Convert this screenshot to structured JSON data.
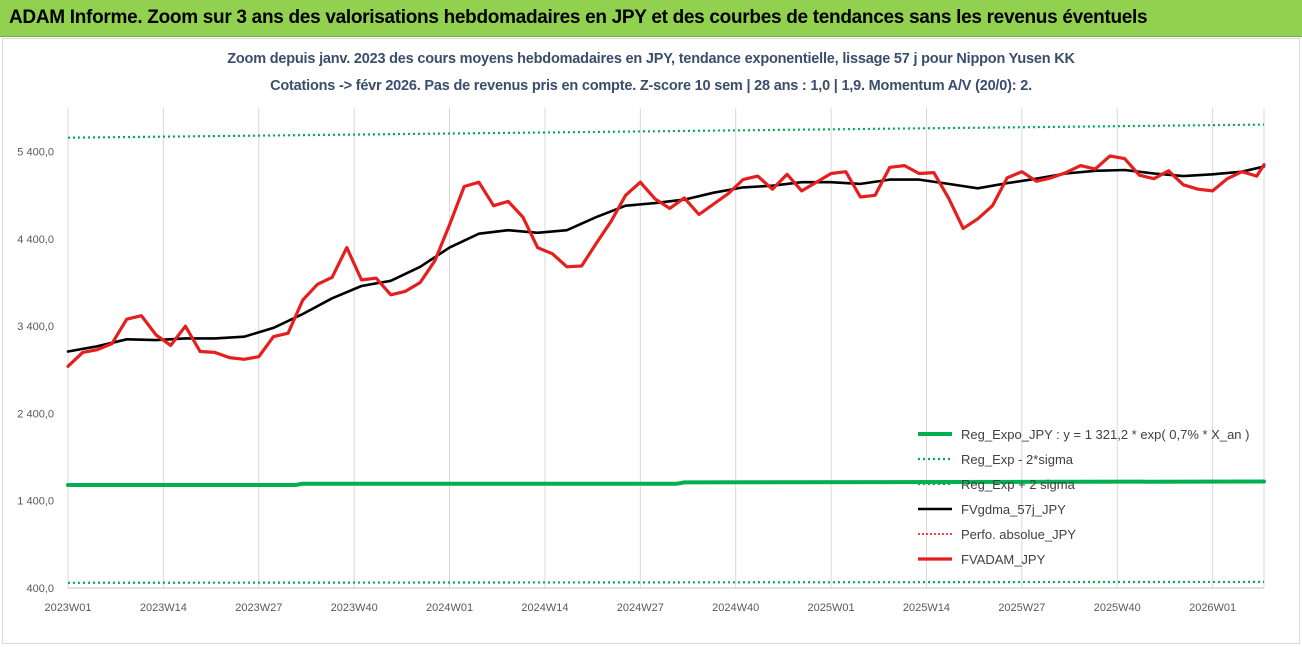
{
  "header": {
    "title": "ADAM Informe. Zoom sur 3 ans des valorisations hebdomadaires en JPY et des courbes de tendances sans les revenus éventuels"
  },
  "colors": {
    "title_bar": "#92d050",
    "reg_expo": "#00b050",
    "band": "#00b050",
    "fvgdma": "#000000",
    "perfo": "#ff0000",
    "fvadam": "#e61e1e",
    "grid": "#d9d9d9"
  },
  "chart_data": {
    "type": "line",
    "title": "Zoom depuis janv. 2023 des cours moyens hebdomadaires en JPY, tendance exponentielle, lissage 57 j pour Nippon Yusen KK",
    "subtitle": "Cotations -> févr 2026.  Pas de revenus pris en compte. Z-score 10 sem | 28 ans : 1,0 | 1,9. Momentum A/V (20/0): 2.",
    "xlabel": "",
    "ylabel": "",
    "ylim": [
      400,
      5900
    ],
    "yticks": [
      400,
      1400,
      2400,
      3400,
      4400,
      5400
    ],
    "ytick_labels": [
      "400,0",
      "1 400,0",
      "2 400,0",
      "3 400,0",
      "4 400,0",
      "5 400,0"
    ],
    "x_tick_labels": [
      "2023W01",
      "2023W14",
      "2023W27",
      "2023W40",
      "2024W01",
      "2024W14",
      "2024W27",
      "2024W40",
      "2025W01",
      "2025W14",
      "2025W27",
      "2025W40",
      "2026W01"
    ],
    "x_tick_positions": [
      0,
      13,
      26,
      39,
      52,
      65,
      78,
      91,
      104,
      117,
      130,
      143,
      156
    ],
    "x_range": [
      0,
      163
    ],
    "series": [
      {
        "name": "Reg_Expo_JPY : y = 1 321,2 * exp( 0,7% * X_an )",
        "style": "solid-thick",
        "x": [
          0,
          31,
          32,
          83,
          84,
          163
        ],
        "values": [
          1580,
          1580,
          1595,
          1595,
          1610,
          1620
        ]
      },
      {
        "name": "Reg_Exp - 2*sigma",
        "style": "dotted",
        "x": [
          0,
          163
        ],
        "values": [
          460,
          470
        ]
      },
      {
        "name": "Reg_Exp + 2 sigma",
        "style": "dotted",
        "x": [
          0,
          163
        ],
        "values": [
          5560,
          5710
        ]
      },
      {
        "name": "FVgdma_57j_JPY",
        "style": "solid",
        "x": [
          0,
          4,
          8,
          12,
          16,
          20,
          24,
          28,
          32,
          36,
          40,
          44,
          48,
          52,
          56,
          60,
          64,
          68,
          72,
          76,
          80,
          84,
          88,
          92,
          96,
          100,
          104,
          108,
          112,
          116,
          120,
          124,
          128,
          132,
          136,
          140,
          144,
          148,
          152,
          156,
          160,
          163
        ],
        "values": [
          3110,
          3170,
          3250,
          3240,
          3260,
          3260,
          3280,
          3380,
          3540,
          3720,
          3860,
          3920,
          4080,
          4300,
          4460,
          4500,
          4470,
          4500,
          4650,
          4780,
          4810,
          4850,
          4930,
          4990,
          5010,
          5050,
          5050,
          5030,
          5080,
          5080,
          5030,
          4980,
          5040,
          5090,
          5150,
          5180,
          5190,
          5150,
          5120,
          5140,
          5170,
          5230
        ]
      },
      {
        "name": "Perfo. absolue_JPY",
        "style": "dotted-red",
        "x": [],
        "values": []
      },
      {
        "name": "FVADAM_JPY",
        "style": "solid-thick",
        "x": [
          0,
          2,
          4,
          6,
          8,
          10,
          12,
          14,
          16,
          18,
          20,
          22,
          24,
          26,
          28,
          30,
          32,
          34,
          36,
          38,
          40,
          42,
          44,
          46,
          48,
          50,
          52,
          54,
          56,
          58,
          60,
          62,
          64,
          66,
          68,
          70,
          72,
          74,
          76,
          78,
          80,
          82,
          84,
          86,
          88,
          90,
          92,
          94,
          96,
          98,
          100,
          102,
          104,
          106,
          108,
          110,
          112,
          114,
          116,
          118,
          120,
          122,
          124,
          126,
          128,
          130,
          132,
          134,
          136,
          138,
          140,
          142,
          144,
          146,
          148,
          150,
          152,
          154,
          156,
          158,
          160,
          162,
          163
        ],
        "values": [
          2940,
          3100,
          3130,
          3200,
          3480,
          3520,
          3300,
          3180,
          3400,
          3110,
          3100,
          3040,
          3020,
          3050,
          3280,
          3320,
          3700,
          3880,
          3960,
          4300,
          3930,
          3950,
          3760,
          3800,
          3900,
          4150,
          4560,
          5000,
          5050,
          4780,
          4830,
          4650,
          4300,
          4230,
          4080,
          4090,
          4350,
          4600,
          4900,
          5050,
          4860,
          4750,
          4870,
          4680,
          4800,
          4920,
          5080,
          5120,
          4970,
          5140,
          4950,
          5050,
          5150,
          5170,
          4880,
          4900,
          5220,
          5240,
          5150,
          5160,
          4870,
          4520,
          4630,
          4780,
          5100,
          5170,
          5060,
          5100,
          5160,
          5240,
          5200,
          5350,
          5320,
          5130,
          5090,
          5180,
          5020,
          4970,
          4950,
          5090,
          5170,
          5120,
          5250
        ]
      }
    ],
    "legend_position": "bottom-right"
  }
}
